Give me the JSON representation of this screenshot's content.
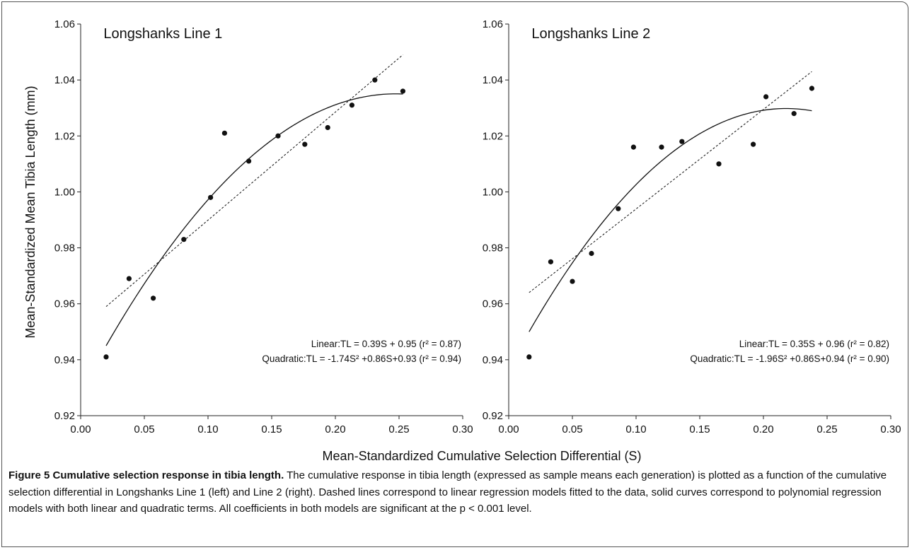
{
  "chart_data": [
    {
      "type": "scatter",
      "title": "Longshanks Line 1",
      "xlim": [
        0.0,
        0.3
      ],
      "ylim": [
        0.92,
        1.06
      ],
      "x_ticks": [
        "0.00",
        "0.05",
        "0.10",
        "0.15",
        "0.20",
        "0.25",
        "0.30"
      ],
      "y_ticks": [
        "0.92",
        "0.94",
        "0.96",
        "0.98",
        "1.00",
        "1.02",
        "1.04",
        "1.06"
      ],
      "points": {
        "x": [
          0.02,
          0.038,
          0.057,
          0.081,
          0.102,
          0.113,
          0.132,
          0.155,
          0.176,
          0.194,
          0.213,
          0.231,
          0.253
        ],
        "y": [
          0.941,
          0.969,
          0.962,
          0.983,
          0.998,
          1.021,
          1.011,
          1.02,
          1.017,
          1.023,
          1.031,
          1.04,
          1.036
        ]
      },
      "linear_fit": {
        "slope": 0.39,
        "intercept": 0.95,
        "x_range": [
          0.02,
          0.253
        ],
        "y_range": [
          0.959,
          1.049
        ]
      },
      "quadratic_fit": {
        "a": -1.74,
        "b": 0.86,
        "c": 0.93,
        "x_range": [
          0.02,
          0.253
        ],
        "y_range": [
          0.945,
          1.035
        ]
      },
      "equations": {
        "linear": "Linear:TL = 0.39S + 0.95 (r² = 0.87)",
        "quadratic": "Quadratic:TL = -1.74S² +0.86S+0.93 (r² = 0.94)"
      }
    },
    {
      "type": "scatter",
      "title": "Longshanks Line 2",
      "xlim": [
        0.0,
        0.3
      ],
      "ylim": [
        0.92,
        1.06
      ],
      "x_ticks": [
        "0.00",
        "0.05",
        "0.10",
        "0.15",
        "0.20",
        "0.25",
        "0.30"
      ],
      "y_ticks": [
        "0.92",
        "0.94",
        "0.96",
        "0.98",
        "1.00",
        "1.02",
        "1.04",
        "1.06"
      ],
      "points": {
        "x": [
          0.016,
          0.033,
          0.05,
          0.065,
          0.086,
          0.098,
          0.12,
          0.136,
          0.165,
          0.192,
          0.202,
          0.224,
          0.238
        ],
        "y": [
          0.941,
          0.975,
          0.968,
          0.978,
          0.994,
          1.016,
          1.016,
          1.018,
          1.01,
          1.017,
          1.034,
          1.028,
          1.037
        ]
      },
      "linear_fit": {
        "slope": 0.35,
        "intercept": 0.96,
        "x_range": [
          0.016,
          0.238
        ],
        "y_range": [
          0.964,
          1.043
        ]
      },
      "quadratic_fit": {
        "a": -1.96,
        "b": 0.86,
        "c": 0.94,
        "x_range": [
          0.016,
          0.238
        ],
        "y_range": [
          0.95,
          1.029
        ]
      },
      "equations": {
        "linear": "Linear:TL = 0.35S + 0.96 (r² = 0.82)",
        "quadratic": "Quadratic:TL = -1.96S² +0.86S+0.94 (r² = 0.90)"
      }
    }
  ],
  "ylabel": "Mean-Standardized Mean Tibia Length (mm)",
  "xlabel": "Mean-Standardized Cumulative Selection Differential (S)",
  "caption": {
    "title": "Figure 5 Cumulative selection response in tibia length.",
    "text": " The cumulative response in tibia length (expressed as sample means each generation) is plotted as a function of the cumulative selection differential in Longshanks Line 1 (left) and Line 2 (right). Dashed lines correspond to linear regression models fitted to the data, solid curves correspond to polynomial regression models with both linear and quadratic terms. All coefficients in both models are significant at the p < 0.001 level."
  }
}
